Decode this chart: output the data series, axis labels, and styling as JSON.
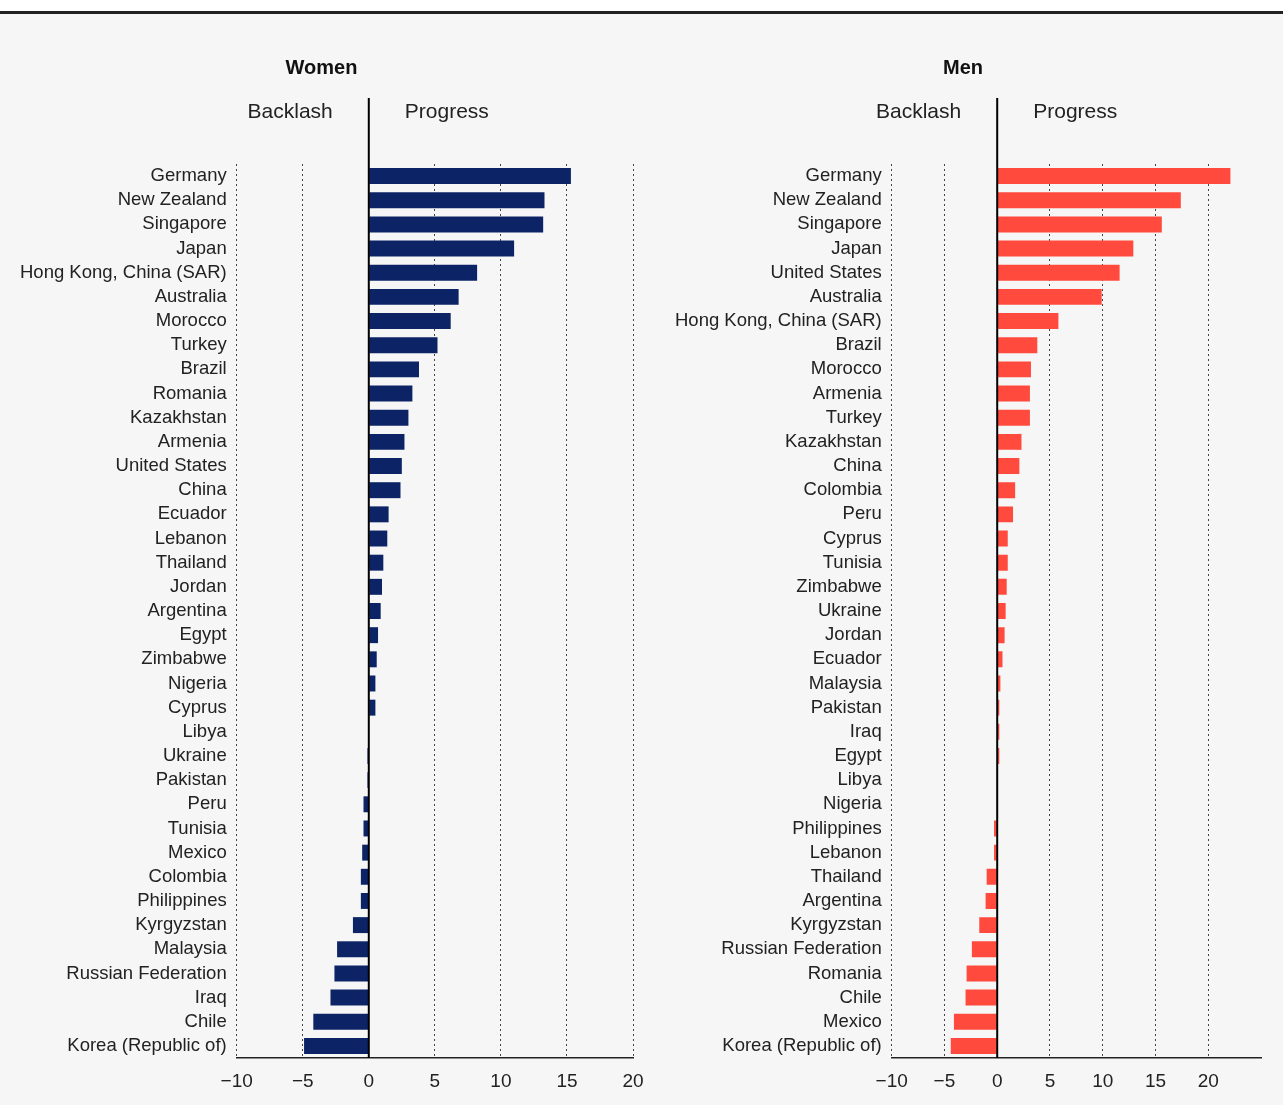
{
  "chart_data": [
    {
      "type": "bar",
      "orientation": "horizontal",
      "title": "Women",
      "annotations": [
        "Backlash",
        "Progress"
      ],
      "categories": [
        "Germany",
        "New Zealand",
        "Singapore",
        "Japan",
        "Hong Kong, China (SAR)",
        "Australia",
        "Morocco",
        "Turkey",
        "Brazil",
        "Romania",
        "Kazakhstan",
        "Armenia",
        "United States",
        "China",
        "Ecuador",
        "Lebanon",
        "Thailand",
        "Jordan",
        "Argentina",
        "Egypt",
        "Zimbabwe",
        "Nigeria",
        "Cyprus",
        "Libya",
        "Ukraine",
        "Pakistan",
        "Peru",
        "Tunisia",
        "Mexico",
        "Colombia",
        "Philippines",
        "Kyrgyzstan",
        "Malaysia",
        "Russian Federation",
        "Iraq",
        "Chile",
        "Korea (Republic of)"
      ],
      "values": [
        15.3,
        13.3,
        13.2,
        11.0,
        8.2,
        6.8,
        6.2,
        5.2,
        3.8,
        3.3,
        3.0,
        2.7,
        2.5,
        2.4,
        1.5,
        1.4,
        1.1,
        1.0,
        0.9,
        0.7,
        0.6,
        0.5,
        0.5,
        0,
        -0.1,
        -0.1,
        -0.4,
        -0.4,
        -0.5,
        -0.6,
        -0.6,
        -1.2,
        -2.4,
        -2.6,
        -2.9,
        -4.2,
        -4.9
      ],
      "color": "#0c2466",
      "xlim": [
        -10,
        20
      ],
      "xticks": [
        -10,
        -5,
        0,
        5,
        10,
        15,
        20
      ],
      "grid": "x",
      "legend": false,
      "ref_lines": [
        {
          "axis": "x",
          "value": 0,
          "color": "#000000"
        }
      ]
    },
    {
      "type": "bar",
      "orientation": "horizontal",
      "title": "Men",
      "annotations": [
        "Backlash",
        "Progress"
      ],
      "categories": [
        "Germany",
        "New Zealand",
        "Singapore",
        "Japan",
        "United States",
        "Australia",
        "Hong Kong, China (SAR)",
        "Brazil",
        "Morocco",
        "Armenia",
        "Turkey",
        "Kazakhstan",
        "China",
        "Colombia",
        "Peru",
        "Cyprus",
        "Tunisia",
        "Zimbabwe",
        "Ukraine",
        "Jordan",
        "Ecuador",
        "Malaysia",
        "Pakistan",
        "Iraq",
        "Egypt",
        "Libya",
        "Nigeria",
        "Philippines",
        "Lebanon",
        "Thailand",
        "Argentina",
        "Kyrgyzstan",
        "Russian Federation",
        "Romania",
        "Chile",
        "Mexico",
        "Korea (Republic of)"
      ],
      "values": [
        22.1,
        17.4,
        15.6,
        12.9,
        11.6,
        9.9,
        5.8,
        3.8,
        3.2,
        3.1,
        3.1,
        2.3,
        2.1,
        1.7,
        1.5,
        1.0,
        1.0,
        0.9,
        0.8,
        0.7,
        0.5,
        0.3,
        0.2,
        0.2,
        0.2,
        0,
        0,
        -0.3,
        -0.3,
        -1.0,
        -1.1,
        -1.7,
        -2.4,
        -2.9,
        -3.0,
        -4.1,
        -4.4
      ],
      "color": "#ff4a3d",
      "xlim": [
        -10,
        25
      ],
      "xticks": [
        -10,
        -5,
        0,
        5,
        10,
        15,
        20
      ],
      "grid": "x",
      "legend": false,
      "ref_lines": [
        {
          "axis": "x",
          "value": 0,
          "color": "#000000"
        }
      ]
    }
  ]
}
